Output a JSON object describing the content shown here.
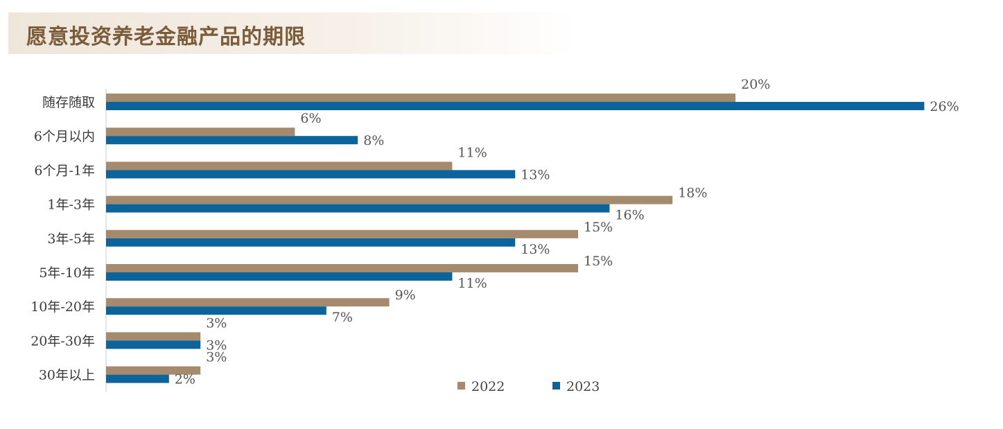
{
  "title": "愿意投资养老金融产品的期限",
  "colors": {
    "s2022": "#a68a6d",
    "s2023": "#0c649c",
    "title": "#7a5b3a"
  },
  "chart_data": {
    "type": "bar",
    "orientation": "horizontal",
    "categories": [
      "随存随取",
      "6个月以内",
      "6个月-1年",
      "1年-3年",
      "3年-5年",
      "5年-10年",
      "10年-20年",
      "20年-30年",
      "30年以上"
    ],
    "series": [
      {
        "name": "2022",
        "values": [
          20,
          6,
          11,
          18,
          15,
          15,
          9,
          3,
          3
        ]
      },
      {
        "name": "2023",
        "values": [
          26,
          8,
          13,
          16,
          13,
          11,
          7,
          3,
          2
        ]
      }
    ],
    "value_suffix": "%",
    "xlim": [
      0,
      26
    ],
    "legend": [
      "2022",
      "2023"
    ],
    "legend_position": "bottom-right",
    "grid": false
  }
}
